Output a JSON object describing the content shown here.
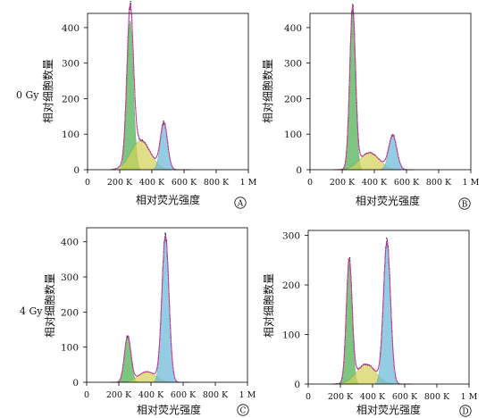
{
  "row_labels": [
    "0 Gy",
    "4 Gy"
  ],
  "colors": {
    "g1": "#4caf50",
    "s": "#d4d25a",
    "g2": "#6bb8d8",
    "fit": "#cc3fa0",
    "outline": "#000000"
  },
  "chart_data": [
    {
      "type": "area",
      "panel_label": "A",
      "xlabel": "相对荧光强度",
      "ylabel": "相对细胞数量",
      "xlim": [
        0,
        1000000
      ],
      "ylim": [
        0,
        440
      ],
      "x_ticks": [
        0,
        200000,
        400000,
        600000,
        800000,
        1000000
      ],
      "x_tick_labels": [
        "0",
        "200 K",
        "400 K",
        "600 K",
        "800 K",
        "1 M"
      ],
      "y_ticks": [
        0,
        100,
        200,
        300,
        400
      ],
      "y_tick_labels": [
        "0",
        "100",
        "200",
        "300",
        "400"
      ],
      "peaks": [
        {
          "component": "G1",
          "center": 265000,
          "sigma": 20000,
          "height": 420
        },
        {
          "component": "S",
          "center": 330000,
          "sigma": 60000,
          "height": 82
        },
        {
          "component": "G2",
          "center": 475000,
          "sigma": 22000,
          "height": 130
        }
      ]
    },
    {
      "type": "area",
      "panel_label": "B",
      "xlabel": "相对荧光强度",
      "ylabel": "相对细胞数量",
      "xlim": [
        0,
        1000000
      ],
      "ylim": [
        0,
        440
      ],
      "x_ticks": [
        0,
        200000,
        400000,
        600000,
        800000,
        1000000
      ],
      "x_tick_labels": [
        "0",
        "200 K",
        "400 K",
        "600 K",
        "800 K",
        "1 M"
      ],
      "y_ticks": [
        0,
        100,
        200,
        300,
        400
      ],
      "y_tick_labels": [
        "0",
        "100",
        "200",
        "300",
        "400"
      ],
      "peaks": [
        {
          "component": "G1",
          "center": 265000,
          "sigma": 18000,
          "height": 450
        },
        {
          "component": "S",
          "center": 370000,
          "sigma": 60000,
          "height": 48
        },
        {
          "component": "G2",
          "center": 515000,
          "sigma": 25000,
          "height": 95
        }
      ]
    },
    {
      "type": "area",
      "panel_label": "C",
      "xlabel": "相对荧光强度",
      "ylabel": "相对细胞数量",
      "xlim": [
        0,
        1000000
      ],
      "ylim": [
        0,
        440
      ],
      "x_ticks": [
        0,
        200000,
        400000,
        600000,
        800000,
        1000000
      ],
      "x_tick_labels": [
        "0",
        "200 K",
        "400 K",
        "600 K",
        "800 K",
        "1 M"
      ],
      "y_ticks": [
        0,
        100,
        200,
        300,
        400
      ],
      "y_tick_labels": [
        "0",
        "100",
        "200",
        "300",
        "400"
      ],
      "peaks": [
        {
          "component": "G1",
          "center": 255000,
          "sigma": 20000,
          "height": 130
        },
        {
          "component": "S",
          "center": 375000,
          "sigma": 55000,
          "height": 30
        },
        {
          "component": "G2",
          "center": 490000,
          "sigma": 22000,
          "height": 415
        }
      ]
    },
    {
      "type": "area",
      "panel_label": "D",
      "xlabel": "相对荧光强度",
      "ylabel": "相对细胞数量",
      "xlim": [
        0,
        1000000
      ],
      "ylim": [
        0,
        310
      ],
      "x_ticks": [
        0,
        200000,
        400000,
        600000,
        800000,
        1000000
      ],
      "x_tick_labels": [
        "0",
        "200 K",
        "400 K",
        "600 K",
        "800 K",
        "1 M"
      ],
      "y_ticks": [
        0,
        100,
        200,
        300
      ],
      "y_tick_labels": [
        "0",
        "100",
        "200",
        "300"
      ],
      "peaks": [
        {
          "component": "G1",
          "center": 255000,
          "sigma": 18000,
          "height": 245
        },
        {
          "component": "S",
          "center": 360000,
          "sigma": 60000,
          "height": 40
        },
        {
          "component": "G2",
          "center": 490000,
          "sigma": 22000,
          "height": 285
        }
      ]
    }
  ]
}
